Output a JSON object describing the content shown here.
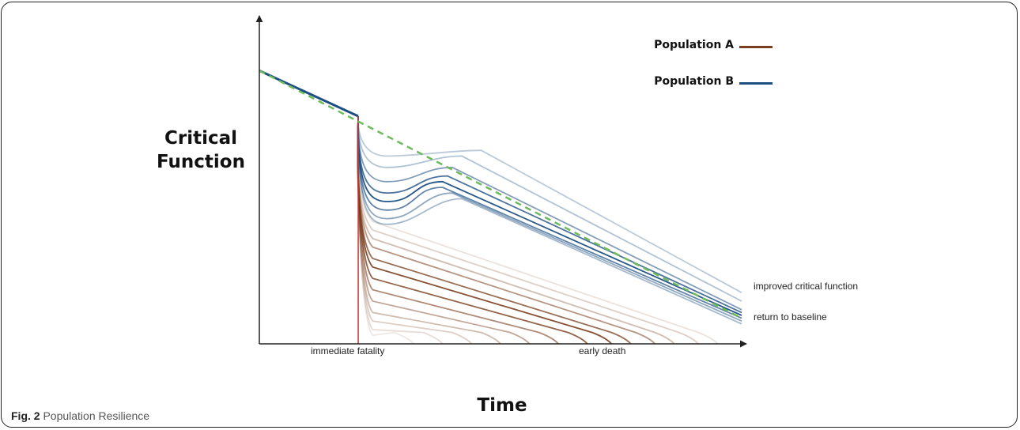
{
  "figure": {
    "caption_label": "Fig. 2",
    "caption_text": "Population Resilience"
  },
  "chart_data": {
    "type": "line",
    "ylabel_line1": "Critical",
    "ylabel_line2": "Function",
    "xlabel": "Time",
    "x_annotations": [
      "immediate fatality",
      "early death"
    ],
    "end_annotations": [
      "improved critical function",
      "return to baseline"
    ],
    "legend": {
      "placement": "top-right",
      "items": [
        {
          "label": "Population A",
          "color": "#7a3e1e"
        },
        {
          "label": "Population B",
          "color": "#1e4f82"
        }
      ]
    },
    "baseline": {
      "style": "dashed",
      "color": "#6dbb5a",
      "start": [
        0,
        0.96
      ],
      "end": [
        1,
        0.09
      ]
    },
    "event_x": 0.205,
    "event_y": 0.8,
    "immediate_fatality": {
      "color": "#cc3333"
    },
    "population_b_curves": [
      {
        "trough": 0.66,
        "recover_x": 0.46,
        "peak": 0.68,
        "end": 0.18,
        "alpha": 0.3
      },
      {
        "trough": 0.62,
        "recover_x": 0.42,
        "peak": 0.66,
        "end": 0.15,
        "alpha": 0.35
      },
      {
        "trough": 0.57,
        "recover_x": 0.4,
        "peak": 0.62,
        "end": 0.12,
        "alpha": 0.55
      },
      {
        "trough": 0.53,
        "recover_x": 0.39,
        "peak": 0.59,
        "end": 0.11,
        "alpha": 0.8
      },
      {
        "trough": 0.5,
        "recover_x": 0.38,
        "peak": 0.57,
        "end": 0.1,
        "alpha": 0.95
      },
      {
        "trough": 0.47,
        "recover_x": 0.38,
        "peak": 0.55,
        "end": 0.09,
        "alpha": 0.7
      },
      {
        "trough": 0.44,
        "recover_x": 0.4,
        "peak": 0.53,
        "end": 0.08,
        "alpha": 0.5
      },
      {
        "trough": 0.42,
        "recover_x": 0.42,
        "peak": 0.51,
        "end": 0.07,
        "alpha": 0.4
      }
    ],
    "population_a_curves": [
      {
        "knee_y": 0.43,
        "end_x": 0.95,
        "alpha": 0.15
      },
      {
        "knee_y": 0.4,
        "end_x": 0.91,
        "alpha": 0.25
      },
      {
        "knee_y": 0.37,
        "end_x": 0.86,
        "alpha": 0.35
      },
      {
        "knee_y": 0.34,
        "end_x": 0.82,
        "alpha": 0.55
      },
      {
        "knee_y": 0.3,
        "end_x": 0.77,
        "alpha": 0.75
      },
      {
        "knee_y": 0.27,
        "end_x": 0.73,
        "alpha": 0.9
      },
      {
        "knee_y": 0.23,
        "end_x": 0.68,
        "alpha": 0.8
      },
      {
        "knee_y": 0.19,
        "end_x": 0.62,
        "alpha": 0.6
      },
      {
        "knee_y": 0.15,
        "end_x": 0.56,
        "alpha": 0.45
      },
      {
        "knee_y": 0.11,
        "end_x": 0.5,
        "alpha": 0.35
      },
      {
        "knee_y": 0.08,
        "end_x": 0.44,
        "alpha": 0.25
      },
      {
        "knee_y": 0.05,
        "end_x": 0.38,
        "alpha": 0.18
      },
      {
        "knee_y": 0.03,
        "end_x": 0.32,
        "alpha": 0.12
      }
    ]
  }
}
